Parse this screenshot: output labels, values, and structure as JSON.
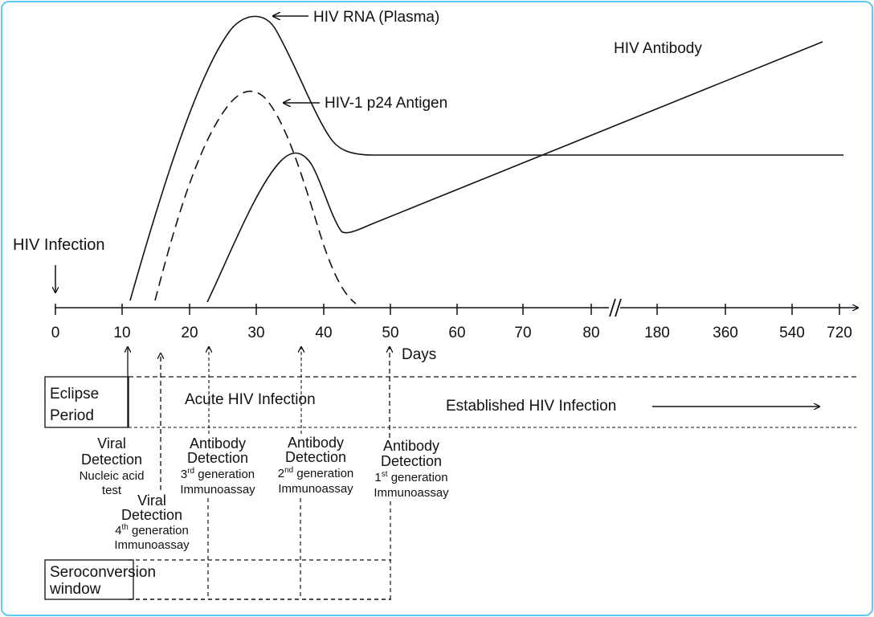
{
  "curves": {
    "rna_label": "HIV RNA (Plasma)",
    "p24_label": "HIV-1 p24 Antigen",
    "antibody_label": "HIV Antibody",
    "infection_label": "HIV Infection"
  },
  "axis": {
    "ticks": [
      "0",
      "10",
      "20",
      "30",
      "40",
      "50",
      "60",
      "70",
      "80",
      "180",
      "360",
      "540",
      "720"
    ],
    "unit_label": "Days"
  },
  "phases": {
    "eclipse_line1": "Eclipse",
    "eclipse_line2": "Period",
    "acute": "Acute HIV Infection",
    "established": "Established HIV Infection",
    "seroconversion_line1": "Seroconversion",
    "seroconversion_line2": "window"
  },
  "tests": {
    "viral_nat": {
      "line1": "Viral",
      "line2": "Detection",
      "line3": "Nucleic acid",
      "line4": "test"
    },
    "viral_4th": {
      "line1": "Viral",
      "line2": "Detection",
      "ordinal_num": "4",
      "ordinal_sup": "th",
      "ordinal_rest": " generation",
      "line4": "Immunoassay"
    },
    "ab_3rd": {
      "line1": "Antibody",
      "line2": "Detection",
      "ordinal_num": "3",
      "ordinal_sup": "rd",
      "ordinal_rest": " generation",
      "line4": "Immunoassay"
    },
    "ab_2nd": {
      "line1": "Antibody",
      "line2": "Detection",
      "ordinal_num": "2",
      "ordinal_sup": "nd",
      "ordinal_rest": " generation",
      "line4": "Immunoassay"
    },
    "ab_1st": {
      "line1": "Antibody",
      "line2": "Detection",
      "ordinal_num": "1",
      "ordinal_sup": "st",
      "ordinal_rest": " generation",
      "line4": "Immunoassay"
    }
  },
  "colors": {
    "border": "#5ec8f0",
    "ink": "#111111"
  }
}
